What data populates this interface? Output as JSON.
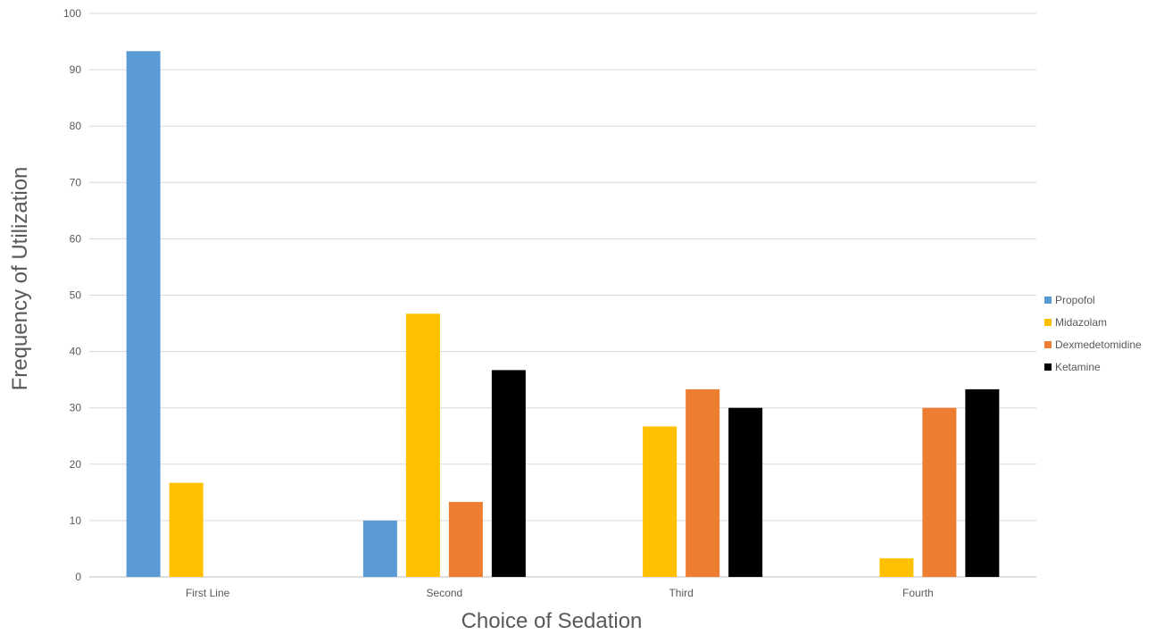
{
  "chart_data": {
    "type": "bar",
    "title": "",
    "xlabel": "Choice of Sedation",
    "ylabel": "Frequency of Utilization",
    "categories": [
      "First Line",
      "Second",
      "Third",
      "Fourth"
    ],
    "series": [
      {
        "name": "Propofol",
        "color": "#5B9BD5",
        "values": [
          93.3,
          10,
          0,
          0
        ]
      },
      {
        "name": "Midazolam",
        "color": "#FFC000",
        "values": [
          16.7,
          46.7,
          26.7,
          3.3
        ]
      },
      {
        "name": "Dexmedetomidine",
        "color": "#ED7D31",
        "values": [
          0,
          13.3,
          33.3,
          30
        ]
      },
      {
        "name": "Ketamine",
        "color": "#000000",
        "values": [
          0,
          36.7,
          30,
          33.3
        ]
      }
    ],
    "ylim": [
      0,
      100
    ],
    "yticks": [
      0,
      10,
      20,
      30,
      40,
      50,
      60,
      70,
      80,
      90,
      100
    ],
    "grid": true,
    "legend_position": "right"
  }
}
